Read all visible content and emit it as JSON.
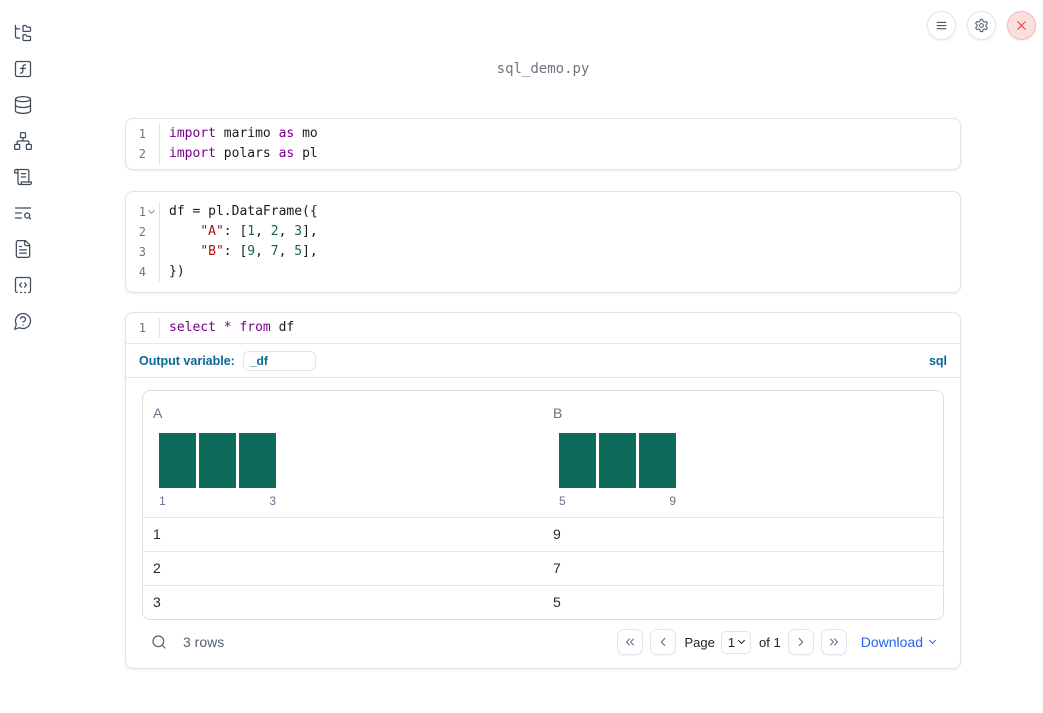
{
  "filename": "sql_demo.py",
  "topbar": {
    "buttons": [
      {
        "name": "menu",
        "icon": "hamburger-menu-icon"
      },
      {
        "name": "settings",
        "icon": "gear-icon"
      },
      {
        "name": "close",
        "icon": "close-icon"
      }
    ]
  },
  "sidebar": {
    "items": [
      {
        "name": "file-explorer",
        "icon": "folder-tree-icon"
      },
      {
        "name": "variables",
        "icon": "function-square-icon"
      },
      {
        "name": "data-sources",
        "icon": "database-icon"
      },
      {
        "name": "dependency-graph",
        "icon": "network-icon"
      },
      {
        "name": "logs",
        "icon": "scroll-text-icon"
      },
      {
        "name": "search-logs",
        "icon": "text-search-icon"
      },
      {
        "name": "documentation",
        "icon": "file-text-icon"
      },
      {
        "name": "snippets",
        "icon": "code-square-icon"
      },
      {
        "name": "help",
        "icon": "help-bubble-icon"
      }
    ]
  },
  "cells": [
    {
      "kind": "python",
      "lines": [
        {
          "n": "1",
          "fold": false,
          "tokens": [
            [
              "import",
              "kw"
            ],
            [
              " marimo ",
              "pl"
            ],
            [
              "as",
              "kw"
            ],
            [
              " mo",
              "pl"
            ]
          ]
        },
        {
          "n": "2",
          "fold": false,
          "tokens": [
            [
              "import",
              "kw"
            ],
            [
              " polars ",
              "pl"
            ],
            [
              "as",
              "kw"
            ],
            [
              " pl",
              "pl"
            ]
          ]
        }
      ]
    },
    {
      "kind": "python",
      "lines": [
        {
          "n": "1",
          "fold": true,
          "tokens": [
            [
              "df = pl.DataFrame({",
              "pl"
            ]
          ]
        },
        {
          "n": "2",
          "fold": false,
          "tokens": [
            [
              "    ",
              "pl"
            ],
            [
              "\"A\"",
              "str"
            ],
            [
              ": [",
              "pl"
            ],
            [
              "1",
              "num"
            ],
            [
              ", ",
              "pl"
            ],
            [
              "2",
              "num"
            ],
            [
              ", ",
              "pl"
            ],
            [
              "3",
              "num"
            ],
            [
              "],",
              "pl"
            ]
          ]
        },
        {
          "n": "3",
          "fold": false,
          "tokens": [
            [
              "    ",
              "pl"
            ],
            [
              "\"B\"",
              "str"
            ],
            [
              ": [",
              "pl"
            ],
            [
              "9",
              "num"
            ],
            [
              ", ",
              "pl"
            ],
            [
              "7",
              "num"
            ],
            [
              ", ",
              "pl"
            ],
            [
              "5",
              "num"
            ],
            [
              "],",
              "pl"
            ]
          ]
        },
        {
          "n": "4",
          "fold": false,
          "tokens": [
            [
              "})",
              "pl"
            ]
          ]
        }
      ]
    },
    {
      "kind": "sql",
      "lines": [
        {
          "n": "1",
          "fold": false,
          "tokens": [
            [
              "select",
              "kw"
            ],
            [
              " ",
              "pl"
            ],
            [
              "*",
              "kw"
            ],
            [
              " ",
              "pl"
            ],
            [
              "from",
              "kw"
            ],
            [
              " df",
              "pl"
            ]
          ]
        }
      ]
    }
  ],
  "sql_meta": {
    "output_variable_label": "Output variable:",
    "output_variable_value": "_df",
    "language_badge": "sql"
  },
  "table": {
    "columns": [
      {
        "name": "A",
        "hist": {
          "bar_heights": [
            1,
            1,
            1
          ],
          "x_min_label": "1",
          "x_max_label": "3"
        }
      },
      {
        "name": "B",
        "hist": {
          "bar_heights": [
            1,
            1,
            1
          ],
          "x_min_label": "5",
          "x_max_label": "9"
        }
      }
    ],
    "rows": [
      [
        "1",
        "9"
      ],
      [
        "2",
        "7"
      ],
      [
        "3",
        "5"
      ]
    ],
    "footer": {
      "row_count": "3 rows",
      "page_label": "Page",
      "page_value": "1",
      "page_of": "of 1",
      "download_label": "Download"
    }
  },
  "colors": {
    "keyword": "#770088",
    "string": "#aa1111",
    "number": "#116644",
    "plain_code": "#1b1b1b",
    "histogram_bar": "#0e6a5a",
    "meta_blue": "#0a6898",
    "link_blue": "#2563eb",
    "close_red": "#d64f4f",
    "sidebar_icon": "#3d4b5c"
  }
}
